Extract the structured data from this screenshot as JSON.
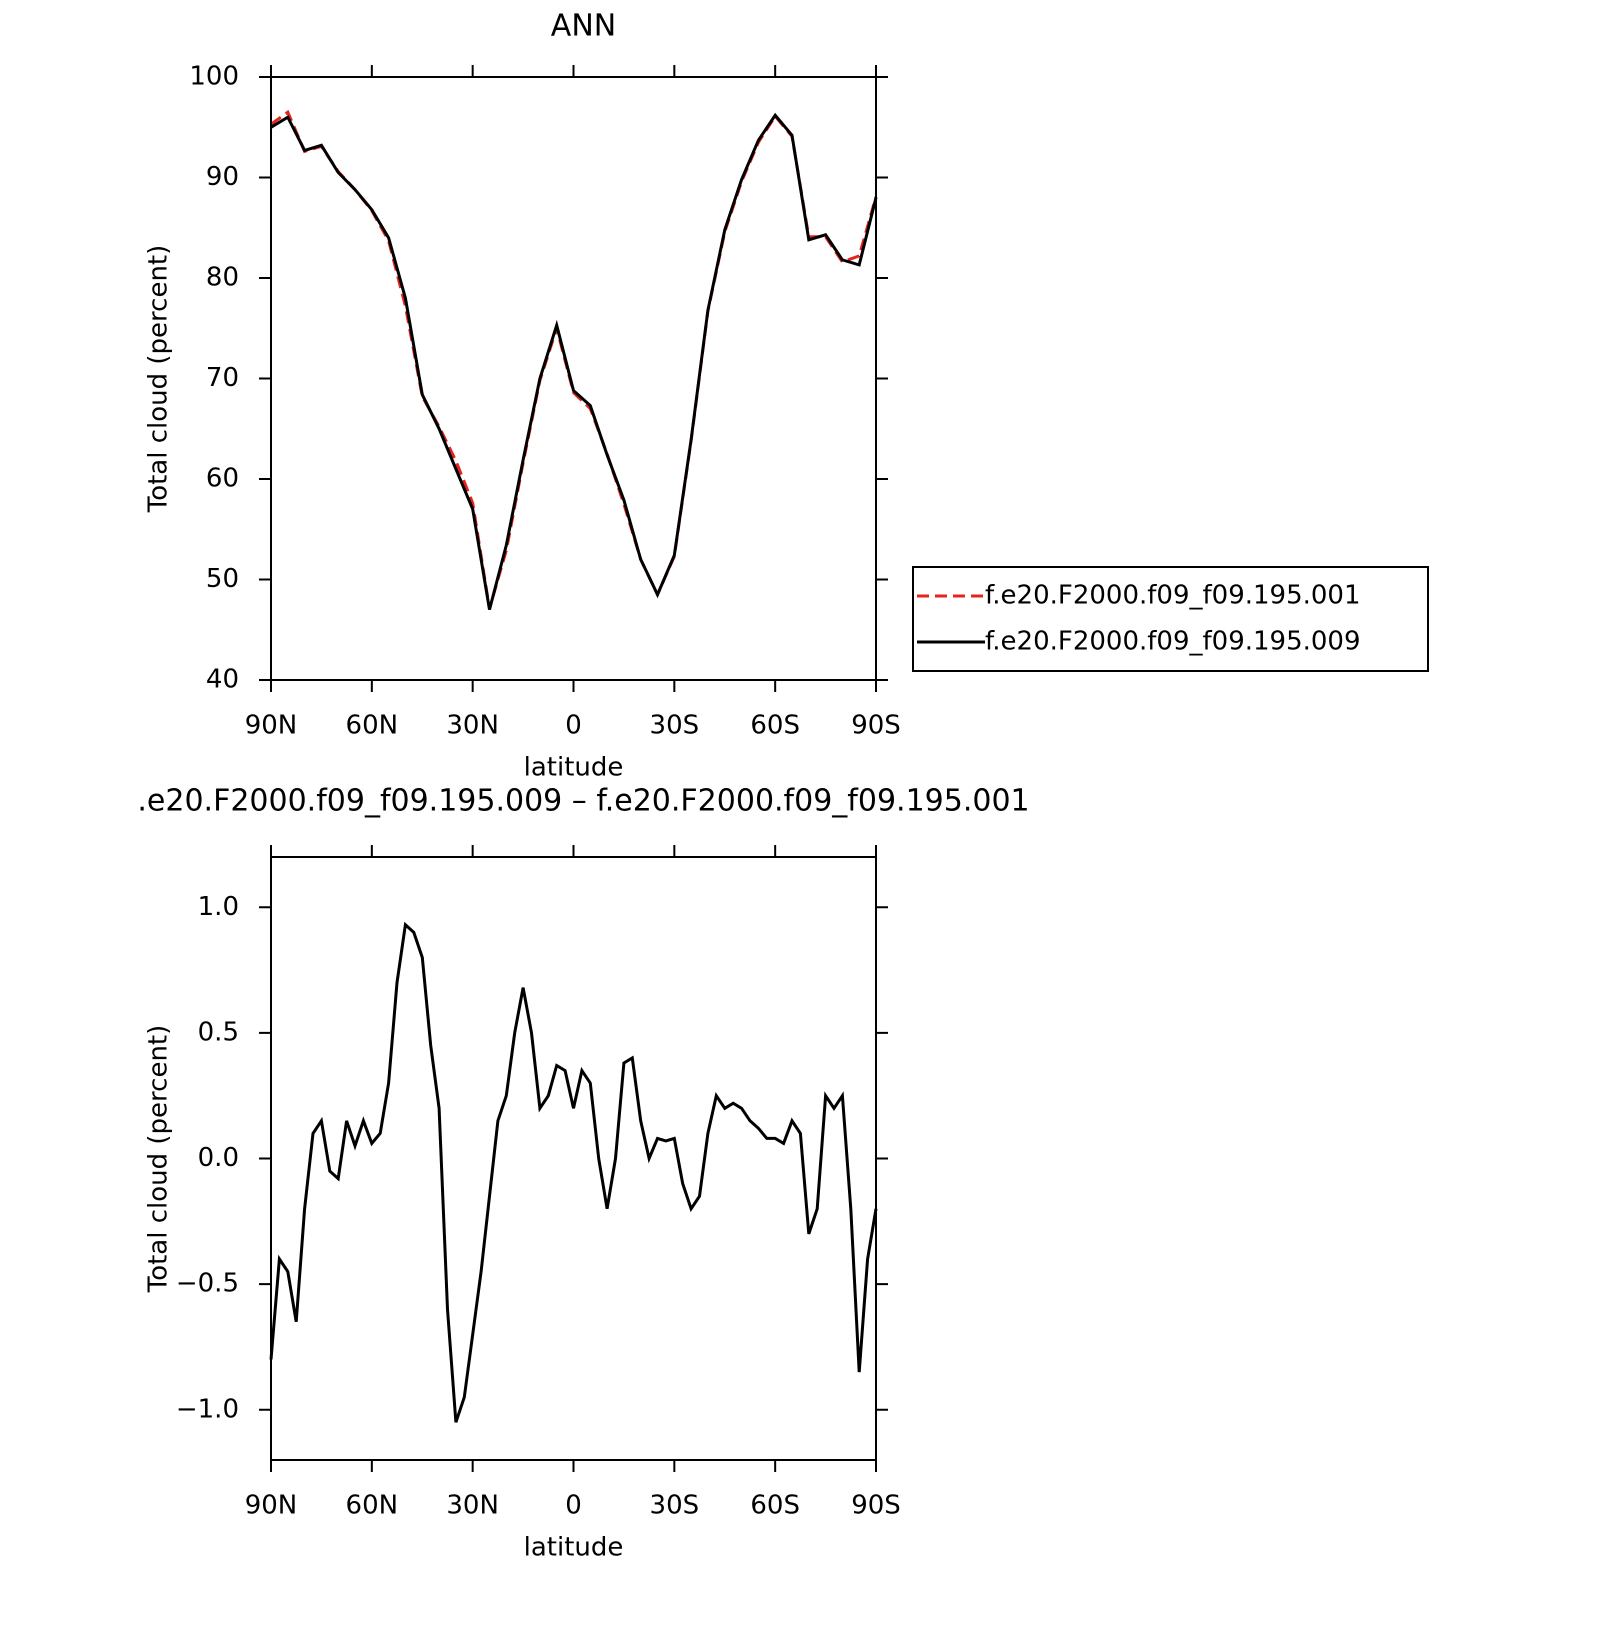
{
  "chart_data": [
    {
      "type": "line",
      "title": "ANN",
      "x_label": "latitude",
      "y_label": "Total cloud (percent)",
      "xlim": [
        90,
        -90
      ],
      "xticks": [
        {
          "value": 90,
          "label": "90N"
        },
        {
          "value": 60,
          "label": "60N"
        },
        {
          "value": 30,
          "label": "30N"
        },
        0,
        {
          "value": -30,
          "label": "30S"
        },
        {
          "value": -60,
          "label": "60S"
        },
        {
          "value": -90,
          "label": "90S"
        }
      ],
      "ylim": [
        40,
        100
      ],
      "yticks": [
        40,
        50,
        60,
        70,
        80,
        90,
        100
      ],
      "x": [
        90,
        85,
        80,
        75,
        70,
        65,
        60,
        55,
        50,
        45,
        40,
        35,
        30,
        25,
        20,
        15,
        10,
        5,
        0,
        -5,
        -10,
        -15,
        -20,
        -25,
        -30,
        -35,
        -40,
        -45,
        -50,
        -55,
        -60,
        -65,
        -70,
        -75,
        -80,
        -85,
        -90
      ],
      "series": [
        {
          "name": "f.e20.F2000.f09_f09.195.001",
          "color": "#e8221c",
          "dashed": true,
          "values": [
            95.3,
            96.5,
            92.6,
            93.1,
            90.6,
            88.8,
            86.7,
            83.7,
            77.2,
            68.2,
            65.2,
            61.8,
            57.6,
            47.1,
            52.9,
            61.6,
            69.8,
            75.0,
            68.6,
            67.0,
            62.5,
            57.5,
            52.0,
            48.5,
            52.3,
            63.8,
            76.7,
            84.6,
            89.6,
            93.5,
            96.1,
            94.1,
            84.1,
            84.1,
            81.6,
            82.2,
            88.1
          ]
        },
        {
          "name": "f.e20.F2000.f09_f09.195.009",
          "color": "#000000",
          "dashed": false,
          "values": [
            95.0,
            96.0,
            92.7,
            93.2,
            90.5,
            88.8,
            86.8,
            84.0,
            78.0,
            68.4,
            65.0,
            61.0,
            57.0,
            47.0,
            53.4,
            61.9,
            70.0,
            75.3,
            68.8,
            67.3,
            62.4,
            57.9,
            52.0,
            48.5,
            52.4,
            63.9,
            76.8,
            84.8,
            89.8,
            93.7,
            96.2,
            94.2,
            83.8,
            84.3,
            81.8,
            81.3,
            88.0
          ]
        }
      ]
    },
    {
      "type": "line",
      "title": ".e20.F2000.f09_f09.195.009 – f.e20.F2000.f09_f09.195.001",
      "x_label": "latitude",
      "y_label": "Total cloud (percent)",
      "xlim": [
        90,
        -90
      ],
      "xticks": [
        {
          "value": 90,
          "label": "90N"
        },
        {
          "value": 60,
          "label": "60N"
        },
        {
          "value": 30,
          "label": "30N"
        },
        0,
        {
          "value": -30,
          "label": "30S"
        },
        {
          "value": -60,
          "label": "60S"
        },
        {
          "value": -90,
          "label": "90S"
        }
      ],
      "ylim": [
        -1.2,
        1.2
      ],
      "yticks": [
        {
          "value": -1.0,
          "label": "−1.0"
        },
        {
          "value": -0.5,
          "label": "−0.5"
        },
        {
          "value": 0,
          "label": "0.0"
        },
        0.5,
        {
          "value": 1.0,
          "label": "1.0"
        }
      ],
      "x": [
        90,
        87.5,
        85,
        82.5,
        80,
        77.5,
        75,
        72.5,
        70,
        67.5,
        65,
        62.5,
        60,
        57.5,
        55,
        52.5,
        50,
        47.5,
        45,
        42.5,
        40,
        37.5,
        35,
        32.5,
        30,
        27.5,
        25,
        22.5,
        20,
        17.5,
        15,
        12.5,
        10,
        7.5,
        5,
        2.5,
        0,
        -2.5,
        -5,
        -7.5,
        -10,
        -12.5,
        -15,
        -17.5,
        -20,
        -22.5,
        -25,
        -27.5,
        -30,
        -32.5,
        -35,
        -37.5,
        -40,
        -42.5,
        -45,
        -47.5,
        -50,
        -52.5,
        -55,
        -57.5,
        -60,
        -62.5,
        -65,
        -67.5,
        -70,
        -72.5,
        -75,
        -77.5,
        -80,
        -82.5,
        -85,
        -87.5,
        -90
      ],
      "series": [
        {
          "color": "#000000",
          "dashed": false,
          "values": [
            -0.8,
            -0.4,
            -0.45,
            -0.65,
            -0.2,
            0.1,
            0.15,
            -0.05,
            -0.08,
            0.15,
            0.05,
            0.15,
            0.06,
            0.1,
            0.3,
            0.7,
            0.93,
            0.9,
            0.8,
            0.45,
            0.2,
            -0.6,
            -1.05,
            -0.95,
            -0.7,
            -0.45,
            -0.15,
            0.15,
            0.25,
            0.5,
            0.68,
            0.5,
            0.2,
            0.25,
            0.37,
            0.35,
            0.2,
            0.35,
            0.3,
            0.0,
            -0.2,
            0.0,
            0.38,
            0.4,
            0.15,
            0.0,
            0.08,
            0.07,
            0.08,
            -0.1,
            -0.2,
            -0.15,
            0.1,
            0.25,
            0.2,
            0.22,
            0.2,
            0.15,
            0.12,
            0.08,
            0.08,
            0.06,
            0.15,
            0.1,
            -0.3,
            -0.2,
            0.25,
            0.2,
            0.25,
            -0.2,
            -0.85,
            -0.4,
            -0.2
          ]
        }
      ]
    }
  ]
}
